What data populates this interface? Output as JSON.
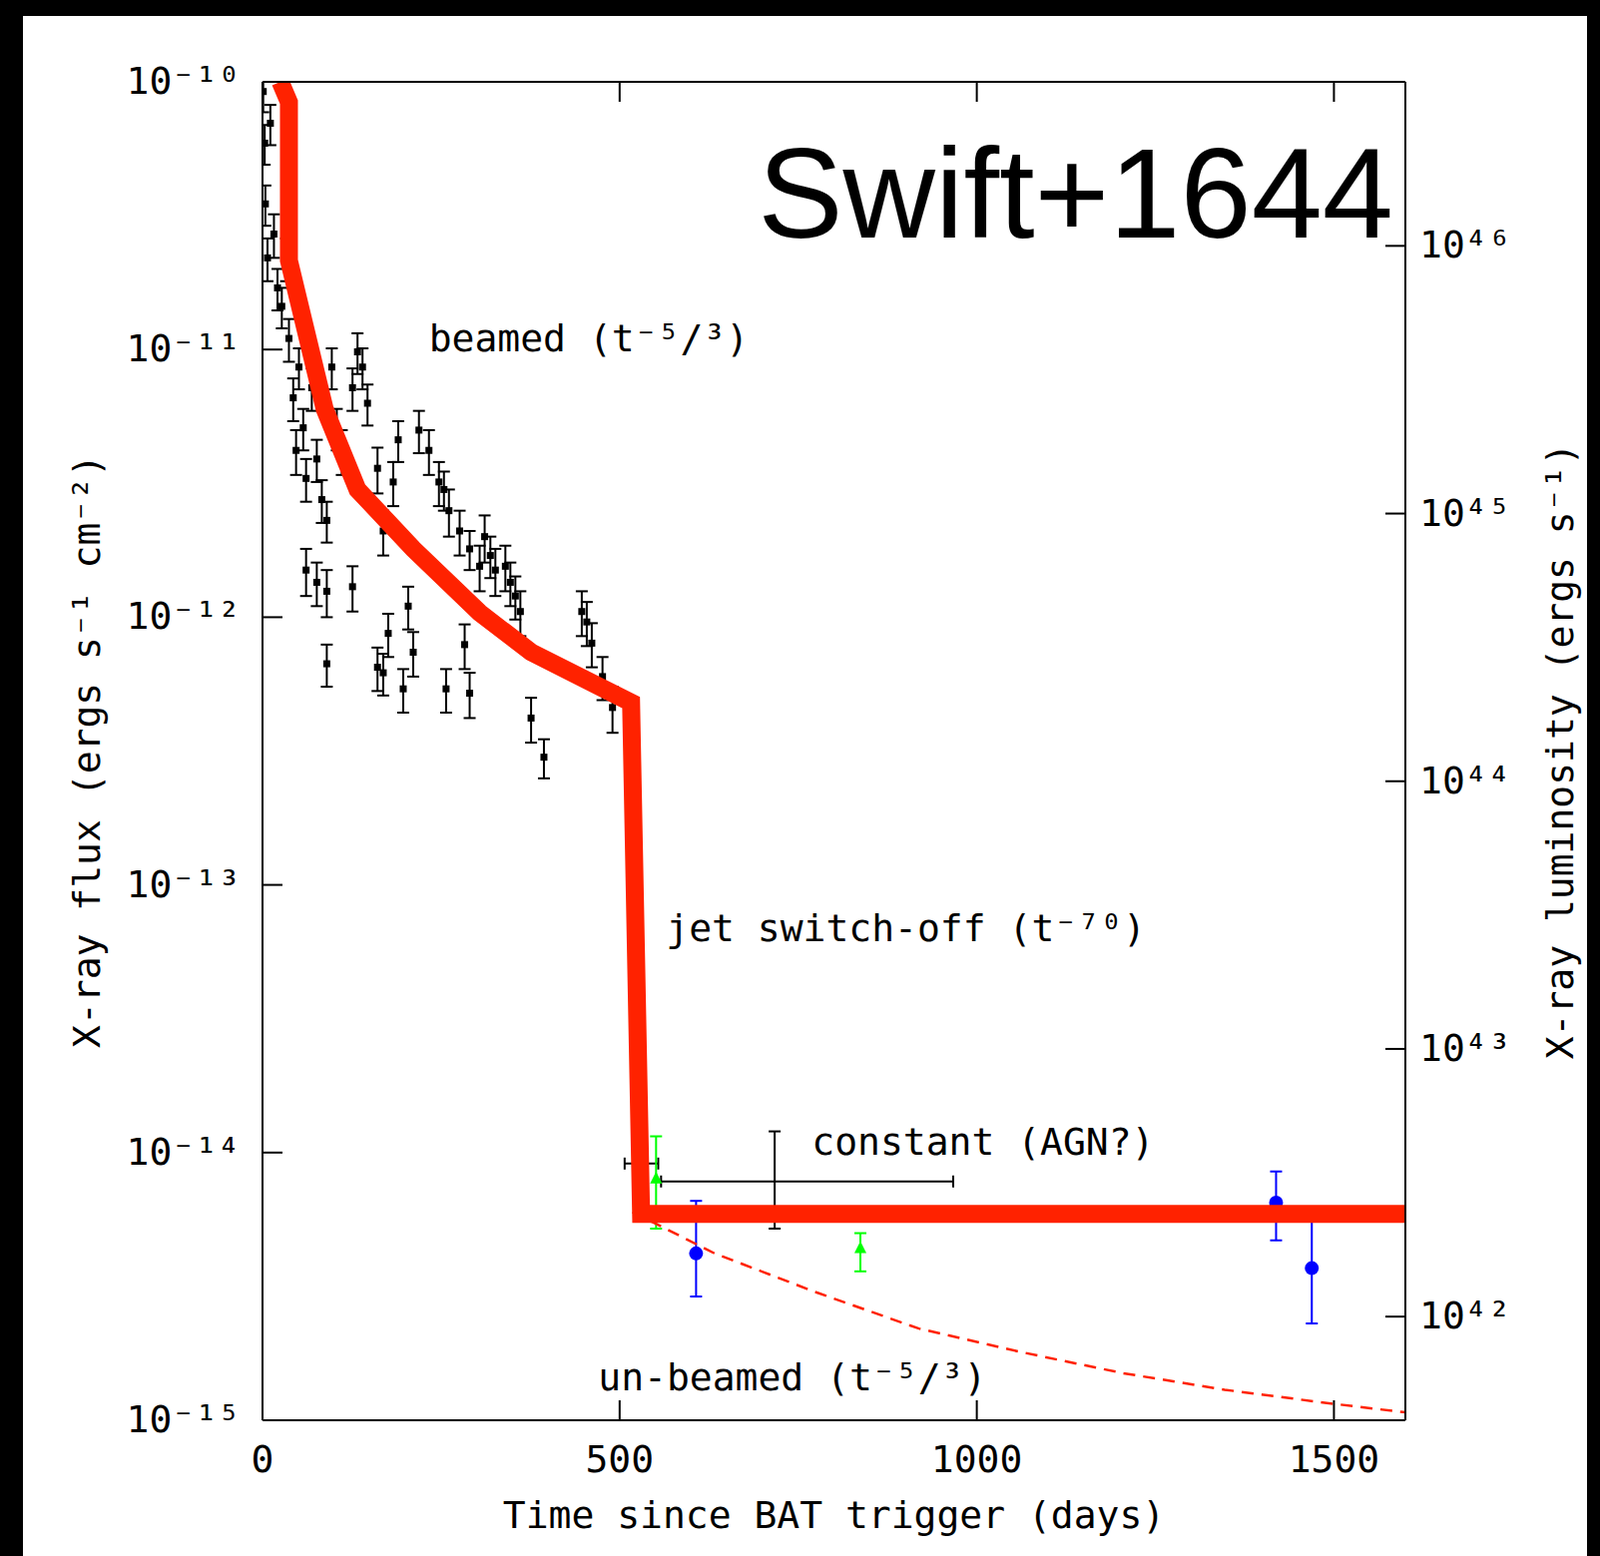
{
  "chart_data": {
    "type": "scatter",
    "title": "Swift+1644",
    "x_label": "Time since BAT trigger (days)",
    "y_label": "X-ray flux (ergs s⁻¹ cm⁻²)",
    "y2_label": "X-ray luminosity (ergs s⁻¹)",
    "log": "y",
    "grid": false,
    "xlim": [
      0,
      1600
    ],
    "ylim": [
      1e-15,
      1e-10
    ],
    "y2lim": [
      4.1e+41,
      4.1e+46
    ],
    "xticks": [
      0,
      500,
      1000,
      1500
    ],
    "yticks": [
      {
        "value": 1e-15,
        "label": "10⁻¹⁵"
      },
      {
        "value": 1e-14,
        "label": "10⁻¹⁴"
      },
      {
        "value": 1e-13,
        "label": "10⁻¹³"
      },
      {
        "value": 1e-12,
        "label": "10⁻¹²"
      },
      {
        "value": 1e-11,
        "label": "10⁻¹¹"
      },
      {
        "value": 1e-10,
        "label": "10⁻¹⁰"
      }
    ],
    "y2ticks": [
      {
        "value": 1e+42,
        "label": "10⁴²"
      },
      {
        "value": 1e+43,
        "label": "10⁴³"
      },
      {
        "value": 1e+44,
        "label": "10⁴⁴"
      },
      {
        "value": 1e+45,
        "label": "10⁴⁵"
      },
      {
        "value": 1e+46,
        "label": "10⁴⁶"
      }
    ],
    "series": [
      {
        "type": "scatter",
        "color": "#000000",
        "marker": "square",
        "x": [
          1,
          3,
          4,
          7,
          11,
          16,
          21,
          27,
          33,
          37,
          43,
          47,
          51,
          57,
          61,
          61,
          69,
          76,
          76,
          83,
          90,
          90,
          90,
          97,
          104,
          111,
          126,
          126,
          133,
          140,
          147,
          161,
          161,
          169,
          169,
          176,
          183,
          190,
          197,
          204,
          211,
          219,
          233,
          247,
          254,
          257,
          261,
          276,
          283,
          290,
          290,
          304,
          311,
          319,
          326,
          340,
          347,
          354,
          361,
          376,
          394,
          447,
          454,
          461,
          476,
          490
        ],
        "values": [
          9.2e-11,
          5.9e-11,
          3.5e-11,
          2.2e-11,
          7e-11,
          2.7e-11,
          1.7e-11,
          1.45e-11,
          2.2e-11,
          1.1e-11,
          6.6e-12,
          4.2e-12,
          8.6e-12,
          5.1e-12,
          3.3e-12,
          1.5e-12,
          7.2e-12,
          3.9e-12,
          1.35e-12,
          2.75e-12,
          2.3e-12,
          1.25e-12,
          6.7e-13,
          8.6e-12,
          5.1e-12,
          4.2e-12,
          7.2e-12,
          1.3e-12,
          9.8e-12,
          8.6e-12,
          6.3e-12,
          3.6e-12,
          6.5e-13,
          2.1e-12,
          6.2e-13,
          8.7e-13,
          3.2e-12,
          4.6e-12,
          5.4e-13,
          1.1e-12,
          7.4e-13,
          5e-12,
          4.2e-12,
          3.2e-12,
          3e-12,
          5.4e-13,
          2.5e-12,
          2.1e-12,
          7.9e-13,
          1.8e-12,
          5.2e-13,
          1.55e-12,
          2e-12,
          1.7e-12,
          1.5e-12,
          1.55e-12,
          1.35e-12,
          1.2e-12,
          1.05e-12,
          4.2e-13,
          3e-13,
          1.05e-12,
          9.6e-13,
          8e-13,
          6e-13,
          4.6e-13
        ],
        "errors": [
          1.5e-11,
          1e-11,
          6e-12,
          4e-12,
          1.2e-11,
          5e-12,
          3e-12,
          2.5e-12,
          4e-12,
          2e-12,
          1.2e-12,
          8e-13,
          1.5e-12,
          9e-13,
          6e-13,
          3e-13,
          1.3e-12,
          7e-13,
          2.5e-13,
          5e-13,
          4e-13,
          2.5e-13,
          1.2e-13,
          1.5e-12,
          9e-13,
          8e-13,
          1.3e-12,
          2.5e-13,
          1.7e-12,
          1.5e-12,
          1.1e-12,
          7e-13,
          1.2e-13,
          4e-13,
          1.1e-13,
          1.6e-13,
          6e-13,
          8e-13,
          1e-13,
          2e-13,
          1.4e-13,
          9e-13,
          8e-13,
          6e-13,
          5e-13,
          1e-13,
          5e-13,
          4e-13,
          1.5e-13,
          3e-13,
          1e-13,
          3e-13,
          4e-13,
          3e-13,
          3e-13,
          3e-13,
          2.5e-13,
          2.2e-13,
          2e-13,
          8e-14,
          5e-14,
          2e-13,
          1.8e-13,
          1.5e-13,
          1.1e-13,
          9e-14
        ]
      },
      {
        "type": "scatter",
        "color": "#000000",
        "marker": "none",
        "x": [
          530,
          717
        ],
        "values": [
          9.1e-15,
          7.8e-15
        ],
        "errors_minus": [
          8e-16,
          2.6e-15
        ],
        "errors_plus": [
          8e-16,
          4.2e-15
        ],
        "x_errors_minus": [
          23,
          159
        ],
        "x_errors_plus": [
          24,
          250
        ]
      },
      {
        "type": "scatter",
        "color": "#00ff00",
        "marker": "triangle",
        "x": [
          551,
          837
        ],
        "values": [
          8e-15,
          4.4e-15
        ],
        "errors_minus": [
          2.8e-15,
          8e-16
        ],
        "errors_plus": [
          3.5e-15,
          6e-16
        ]
      },
      {
        "type": "scatter",
        "color": "#0000ff",
        "marker": "circle",
        "x": [
          607,
          1419,
          1469
        ],
        "values": [
          4.2e-15,
          6.5e-15,
          3.7e-15
        ],
        "errors_minus": [
          1.3e-15,
          1.8e-15,
          1.4e-15
        ],
        "errors_plus": [
          2.4e-15,
          2e-15,
          2.2e-15
        ]
      },
      {
        "type": "line",
        "color": "#ff2200",
        "line_style": "dashed",
        "x": [
          518,
          633,
          776,
          919,
          1061,
          1204,
          1347,
          1490,
          1600
        ],
        "values": [
          6e-15,
          4.2e-15,
          3e-15,
          2.2e-15,
          1.8e-15,
          1.5e-15,
          1.3e-15,
          1.16e-15,
          1.07e-15
        ]
      },
      {
        "type": "line",
        "color": "#ff2200",
        "line_style": "solid",
        "x": [
          25,
          37,
          37,
          87,
          133,
          211,
          304,
          376,
          516,
          530,
          1600
        ],
        "values": [
          1e-10,
          8.4e-11,
          2.15e-11,
          6e-12,
          3e-12,
          1.8e-12,
          1.04e-12,
          7.4e-13,
          4.8e-13,
          5.9e-15,
          5.9e-15
        ]
      }
    ],
    "annotations": [
      {
        "text": "beamed (t⁻⁵/³)",
        "x": 233,
        "y": 1.1e-11
      },
      {
        "text": "jet switch-off (t⁻⁷⁰)",
        "x": 565,
        "y": 6.9e-14
      },
      {
        "text": "constant (AGN?)",
        "x": 769,
        "y": 1.1e-14
      },
      {
        "text": "un-beamed (t⁻⁵/³)",
        "x": 470,
        "y": 1.45e-15
      }
    ]
  }
}
